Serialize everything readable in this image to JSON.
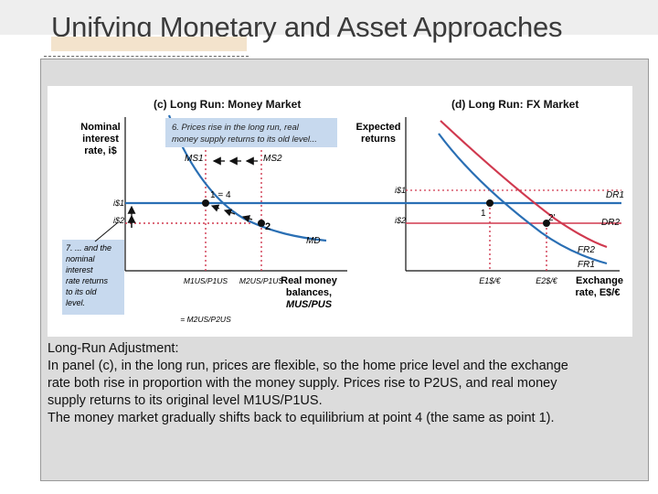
{
  "slide": {
    "title": "Unifying Monetary and Asset Approaches"
  },
  "figure": {
    "panel_c": {
      "heading": "(c) Long Run: Money Market",
      "y_axis_label": [
        "Nominal",
        "interest",
        "rate, i$"
      ],
      "x_axis_label": [
        "Real money",
        "balances,",
        "MUS/PUS"
      ],
      "curve_labels": {
        "ms1": "MS1",
        "ms2": "MS2",
        "md": "MD"
      },
      "point_labels": {
        "p1_4": "1 = 4",
        "p2": "2"
      },
      "y_ticks": [
        "i$1",
        "i$2"
      ],
      "x_ticks": [
        "M1US/P1US",
        "M2US/P1US"
      ],
      "x_tick_below": "= M2US/P2US",
      "callout_6": [
        "6. Prices rise in the long run, real",
        "money supply returns to its old level..."
      ],
      "callout_7": [
        "7. ... and the",
        "nominal",
        "interest",
        "rate returns",
        "to its old",
        "level."
      ]
    },
    "panel_d": {
      "heading": "(d) Long Run: FX Market",
      "y_axis_label": [
        "Expected",
        "returns"
      ],
      "x_axis_label": [
        "Exchange",
        "rate, E$/€"
      ],
      "curve_labels": {
        "dr1": "DR1",
        "dr2": "DR2",
        "fr2": "FR2",
        "fr1": "FR1"
      },
      "point_labels": {
        "p1": "1",
        "p2": "2'"
      },
      "y_ticks": [
        "i$1",
        "i$2"
      ],
      "x_ticks": [
        "E1$/€",
        "E2$/€"
      ]
    },
    "colors": {
      "blue_curve": "#2a6fb4",
      "red_curve": "#d0394f",
      "callout_fill": "#c7d9ee",
      "guide_dots": "#d0394f",
      "figure_bg": "#ffffff",
      "panel_bg": "#dcdcdc"
    }
  },
  "caption": {
    "heading": "Long-Run Adjustment:",
    "line1": "In panel (c), in the long run, prices are flexible, so the home price level and the exchange",
    "line2": "rate both rise in proportion with the money supply. Prices rise to P2US, and real money",
    "line3": "supply returns to its original level M1US/P1US.",
    "line4": "The money market gradually shifts back to equilibrium at point 4 (the same as point 1)."
  }
}
